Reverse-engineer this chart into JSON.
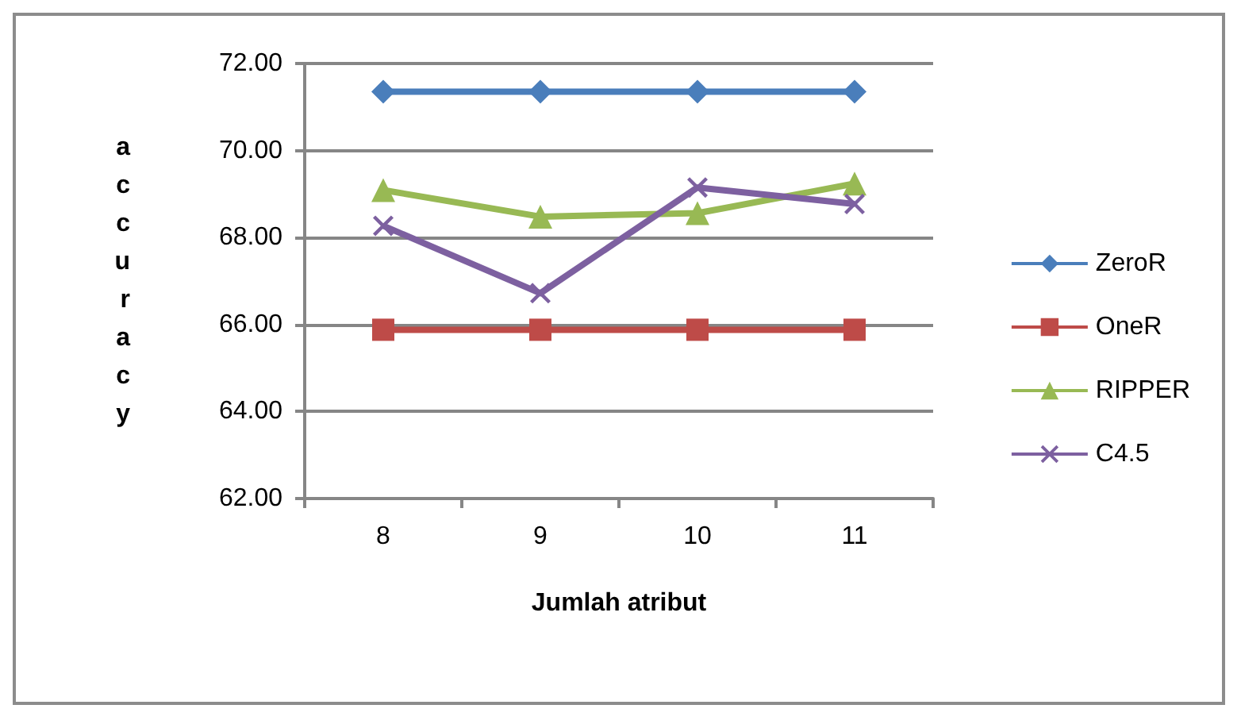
{
  "chart_data": {
    "type": "line",
    "xlabel": "Jumlah atribut",
    "ylabel": "accuracy",
    "categories": [
      "8",
      "9",
      "10",
      "11"
    ],
    "series": [
      {
        "name": "ZeroR",
        "color": "#4a7ebb",
        "marker": "diamond",
        "values": [
          71.35,
          71.35,
          71.35,
          71.35
        ]
      },
      {
        "name": "OneR",
        "color": "#be4b48",
        "marker": "square",
        "values": [
          65.88,
          65.88,
          65.88,
          65.88
        ]
      },
      {
        "name": "RIPPER",
        "color": "#98b954",
        "marker": "triangle",
        "values": [
          69.09,
          68.48,
          68.56,
          69.24
        ]
      },
      {
        "name": "C4.5",
        "color": "#7d60a0",
        "marker": "cross",
        "values": [
          68.27,
          66.72,
          69.15,
          68.77
        ]
      }
    ],
    "ylim": [
      62,
      72
    ],
    "yticks": [
      {
        "value": 62,
        "label": "62.00"
      },
      {
        "value": 64,
        "label": "64.00"
      },
      {
        "value": 66,
        "label": "66.00"
      },
      {
        "value": 68,
        "label": "68.00"
      },
      {
        "value": 70,
        "label": "70.00"
      },
      {
        "value": 72,
        "label": "72.00"
      }
    ],
    "grid": "y",
    "legend": "right"
  }
}
